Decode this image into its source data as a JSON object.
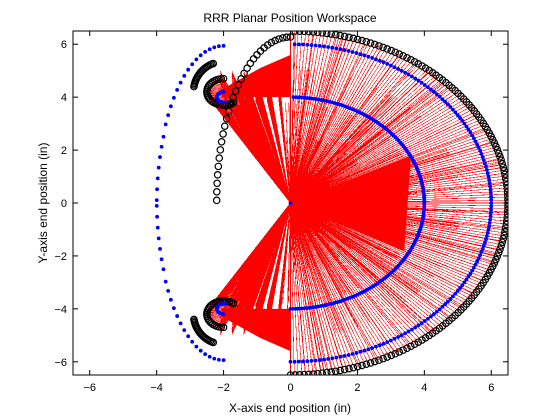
{
  "chart_data": {
    "type": "scatter",
    "title": "RRR Planar Position Workspace",
    "xlabel": "X-axis end position (in)",
    "ylabel": "Y-axis end position (in)",
    "xlim": [
      -6.5,
      6.5
    ],
    "ylim": [
      -6.5,
      6.5
    ],
    "xticks": [
      -6,
      -4,
      -2,
      0,
      2,
      4,
      6
    ],
    "yticks": [
      -6,
      -4,
      -2,
      0,
      2,
      4,
      6
    ],
    "xtick_labels": [
      "−6",
      "−4",
      "−2",
      "0",
      "2",
      "4",
      "6"
    ],
    "ytick_labels": [
      "−6",
      "−4",
      "−2",
      "0",
      "2",
      "4",
      "6"
    ],
    "grid": false,
    "legend": "none",
    "linkage": {
      "link_lengths_in": [
        2,
        2,
        2
      ],
      "joint1_range_deg": [
        -90,
        90
      ]
    },
    "series": [
      {
        "role": "third-link end positions (outer workspace boundary)",
        "color": "#000000",
        "outer_radius": 6.5,
        "inner_hook_radius": 0.5,
        "hook_center": [
          -2,
          4.2
        ]
      },
      {
        "role": "link lines to end effector",
        "color": "#ff0000"
      },
      {
        "role": "joint positions",
        "color": "#0000ff",
        "arc_radii": [
          4,
          6
        ],
        "hook_center": [
          -2,
          4.0
        ],
        "hook_radius": 0.2
      }
    ],
    "colors": {
      "lines": "#ff0000",
      "joints": "#0000ff",
      "endpoints": "#000000"
    }
  }
}
